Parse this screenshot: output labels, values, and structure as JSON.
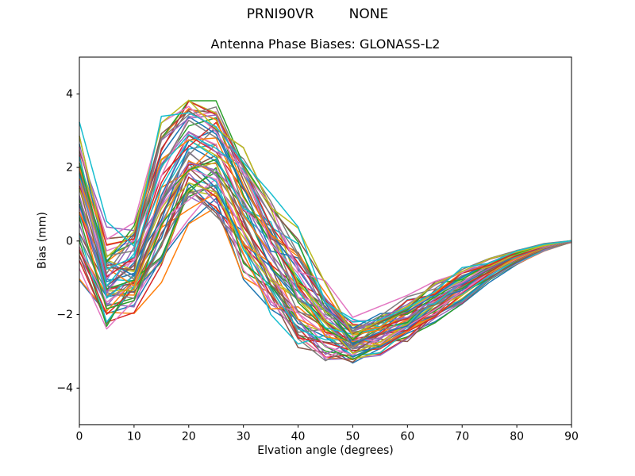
{
  "header": {
    "suptitle_left": "PRNI90VR",
    "suptitle_right": "NONE"
  },
  "chart_data": {
    "type": "line",
    "suptitle": "PRNI90VR        NONE",
    "title": "Antenna Phase Biases: GLONASS-L2",
    "xlabel": "Elvation angle (degrees)",
    "ylabel": "Bias (mm)",
    "xlim": [
      0,
      90
    ],
    "ylim": [
      -5,
      5
    ],
    "xticks": [
      0,
      10,
      20,
      30,
      40,
      50,
      60,
      70,
      80,
      90
    ],
    "yticks": [
      -4,
      -2,
      0,
      2,
      4
    ],
    "grid": false,
    "legend": "none",
    "num_series": 60,
    "series_note": "Approximately 60 unlabeled overlapping bias curves (one per antenna/satellite), sampled every 5 degrees of elevation; the band spans envelope_low..envelope_high at each elevation, dips near 5 deg, peaks near 20-25 deg, reaches minimum near 45-55 deg, and converges to 0 mm at 90 deg.",
    "x": [
      0,
      5,
      10,
      15,
      20,
      25,
      30,
      35,
      40,
      45,
      50,
      55,
      60,
      65,
      70,
      75,
      80,
      85,
      90
    ],
    "envelope_high": [
      3.35,
      0.6,
      0.75,
      3.45,
      4.4,
      4.15,
      3.0,
      1.75,
      0.4,
      -1.0,
      -1.95,
      -1.7,
      -1.4,
      -1.05,
      -0.72,
      -0.45,
      -0.22,
      -0.06,
      0.02
    ],
    "envelope_low": [
      -1.2,
      -2.85,
      -2.4,
      -1.2,
      0.25,
      0.25,
      -1.3,
      -2.5,
      -3.35,
      -3.5,
      -3.55,
      -3.25,
      -2.85,
      -2.3,
      -1.75,
      -1.15,
      -0.65,
      -0.28,
      -0.04
    ],
    "jitter": [
      0.45,
      0.55,
      0.55,
      0.6,
      0.55,
      0.6,
      0.6,
      0.6,
      0.55,
      0.4,
      0.3,
      0.28,
      0.22,
      0.18,
      0.12,
      0.08,
      0.05,
      0.025,
      0.008
    ],
    "line_width": 1.5,
    "colors": [
      "#1f77b4",
      "#ff7f0e",
      "#2ca02c",
      "#d62728",
      "#9467bd",
      "#8c564b",
      "#e377c2",
      "#7f7f7f",
      "#bcbd22",
      "#17becf"
    ],
    "axis_color": "#000000",
    "background_color": "#ffffff"
  }
}
